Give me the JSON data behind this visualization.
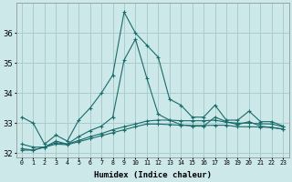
{
  "xlabel": "Humidex (Indice chaleur)",
  "bg_color": "#cce8e8",
  "grid_color": "#aacccc",
  "line_color": "#1a6b6b",
  "xlim": [
    -0.5,
    23.5
  ],
  "ylim": [
    31.85,
    37.0
  ],
  "yticks": [
    32,
    33,
    34,
    35,
    36
  ],
  "xtick_labels": [
    "0",
    "1",
    "2",
    "3",
    "4",
    "5",
    "6",
    "7",
    "8",
    "9",
    "10",
    "11",
    "12",
    "13",
    "14",
    "15",
    "16",
    "17",
    "18",
    "19",
    "20",
    "21",
    "22",
    "23"
  ],
  "series": [
    [
      33.2,
      33.0,
      32.3,
      32.6,
      32.4,
      33.1,
      33.5,
      34.0,
      34.6,
      36.7,
      36.0,
      35.6,
      35.2,
      33.8,
      33.6,
      33.2,
      33.2,
      33.6,
      33.1,
      33.1,
      33.4,
      33.05,
      33.05,
      32.9
    ],
    [
      32.3,
      32.2,
      32.2,
      32.4,
      32.3,
      32.55,
      32.75,
      32.9,
      33.2,
      35.1,
      35.8,
      34.5,
      33.3,
      33.1,
      32.95,
      32.9,
      32.9,
      33.2,
      33.05,
      32.95,
      33.05,
      32.9,
      32.85,
      32.8
    ],
    [
      32.15,
      32.1,
      32.2,
      32.35,
      32.3,
      32.42,
      32.55,
      32.65,
      32.78,
      32.88,
      32.97,
      33.07,
      33.1,
      33.1,
      33.08,
      33.08,
      33.08,
      33.1,
      33.03,
      33.0,
      33.0,
      32.98,
      32.97,
      32.88
    ],
    [
      32.1,
      32.1,
      32.2,
      32.3,
      32.28,
      32.38,
      32.48,
      32.58,
      32.68,
      32.78,
      32.88,
      32.97,
      32.97,
      32.95,
      32.93,
      32.92,
      32.92,
      32.93,
      32.93,
      32.88,
      32.88,
      32.87,
      32.86,
      32.8
    ]
  ]
}
